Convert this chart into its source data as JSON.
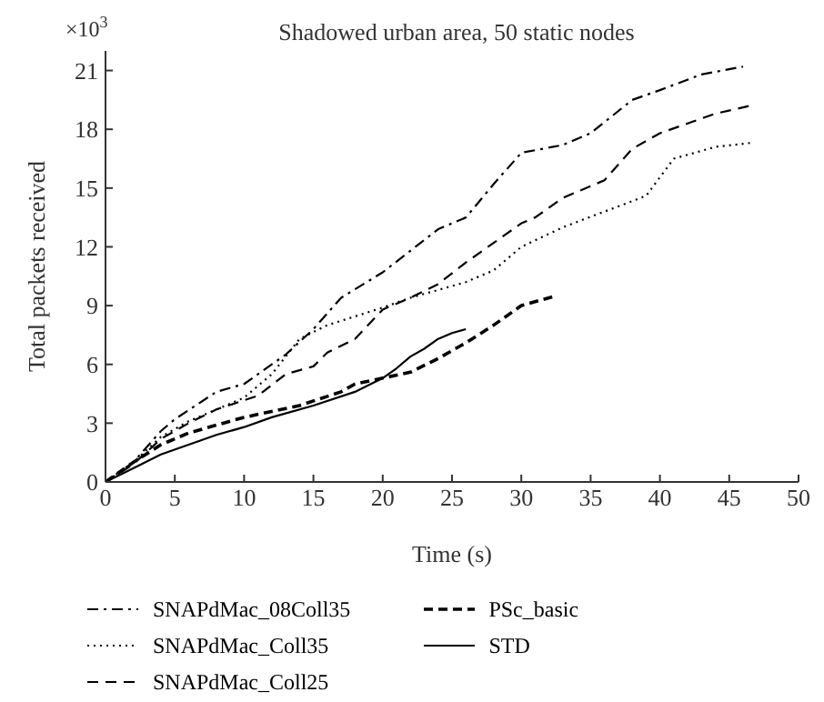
{
  "chart_data": {
    "type": "line",
    "title": "Shadowed urban area, 50 static nodes",
    "xlabel": "Time (s)",
    "ylabel": "Total packets received",
    "annotations": [
      "×10$^{3}$"
    ],
    "xlim": [
      0,
      50
    ],
    "xticks": [
      0,
      5,
      10,
      15,
      20,
      25,
      30,
      35,
      40,
      45,
      50
    ],
    "ylim": [
      0,
      22
    ],
    "yticks": [
      0,
      3,
      6,
      9,
      12,
      15,
      18,
      21
    ],
    "grid": false,
    "legend": "bottom",
    "marker": "none",
    "series": [
      {
        "name": "SNAPdMac_08Coll35",
        "color": "#000000",
        "line_style": "dashdot",
        "x": [
          0,
          2,
          4,
          5,
          8,
          10,
          13,
          15,
          17,
          20,
          22,
          24,
          26,
          28,
          30,
          33,
          35,
          38,
          40,
          43,
          46
        ],
        "values": [
          0,
          1,
          2.6,
          3.2,
          4.6,
          5,
          6.5,
          7.8,
          9.4,
          10.7,
          11.8,
          12.9,
          13.5,
          15.2,
          16.8,
          17.2,
          17.8,
          19.5,
          20,
          20.8,
          21.2
        ]
      },
      {
        "name": "SNAPdMac_Coll35",
        "color": "#000000",
        "line_style": "dotted",
        "x": [
          0,
          2,
          4,
          6,
          10,
          12,
          14,
          16,
          20,
          22,
          26,
          28,
          30,
          33,
          36,
          39,
          41,
          44,
          46.5
        ],
        "values": [
          0,
          1,
          2.3,
          3.1,
          4.3,
          5.5,
          7.3,
          8,
          8.9,
          9.4,
          10.2,
          10.8,
          12,
          13,
          13.8,
          14.6,
          16.5,
          17.1,
          17.3
        ]
      },
      {
        "name": "SNAPdMac_Coll25",
        "color": "#000000",
        "line_style": "dashed",
        "x": [
          0,
          2,
          4,
          6,
          8,
          11,
          13,
          15,
          16,
          18,
          20,
          22,
          24,
          26,
          28,
          30,
          31,
          33,
          36,
          38,
          40,
          44,
          46.5
        ],
        "values": [
          0,
          0.9,
          2.2,
          3,
          3.7,
          4.4,
          5.5,
          5.9,
          6.6,
          7.3,
          8.8,
          9.4,
          10.1,
          11.2,
          12.2,
          13.2,
          13.5,
          14.5,
          15.4,
          17,
          17.8,
          18.8,
          19.2
        ]
      },
      {
        "name": "PSc_basic",
        "color": "#000000",
        "line_style": "dashed_bold",
        "x": [
          0,
          2,
          4,
          6,
          10,
          14,
          17,
          18,
          20,
          22,
          24,
          26,
          28,
          30,
          32.5
        ],
        "values": [
          0,
          1,
          1.9,
          2.5,
          3.3,
          3.9,
          4.6,
          5,
          5.3,
          5.6,
          6.3,
          7.1,
          8,
          9,
          9.5
        ]
      },
      {
        "name": "STD",
        "color": "#000000",
        "line_style": "solid",
        "x": [
          0,
          2,
          4,
          6,
          8,
          10,
          12,
          15,
          18,
          20,
          21,
          22,
          23,
          24,
          25,
          26
        ],
        "values": [
          0,
          0.7,
          1.4,
          1.9,
          2.4,
          2.8,
          3.3,
          3.9,
          4.6,
          5.3,
          5.8,
          6.4,
          6.8,
          7.3,
          7.6,
          7.8
        ]
      }
    ]
  }
}
